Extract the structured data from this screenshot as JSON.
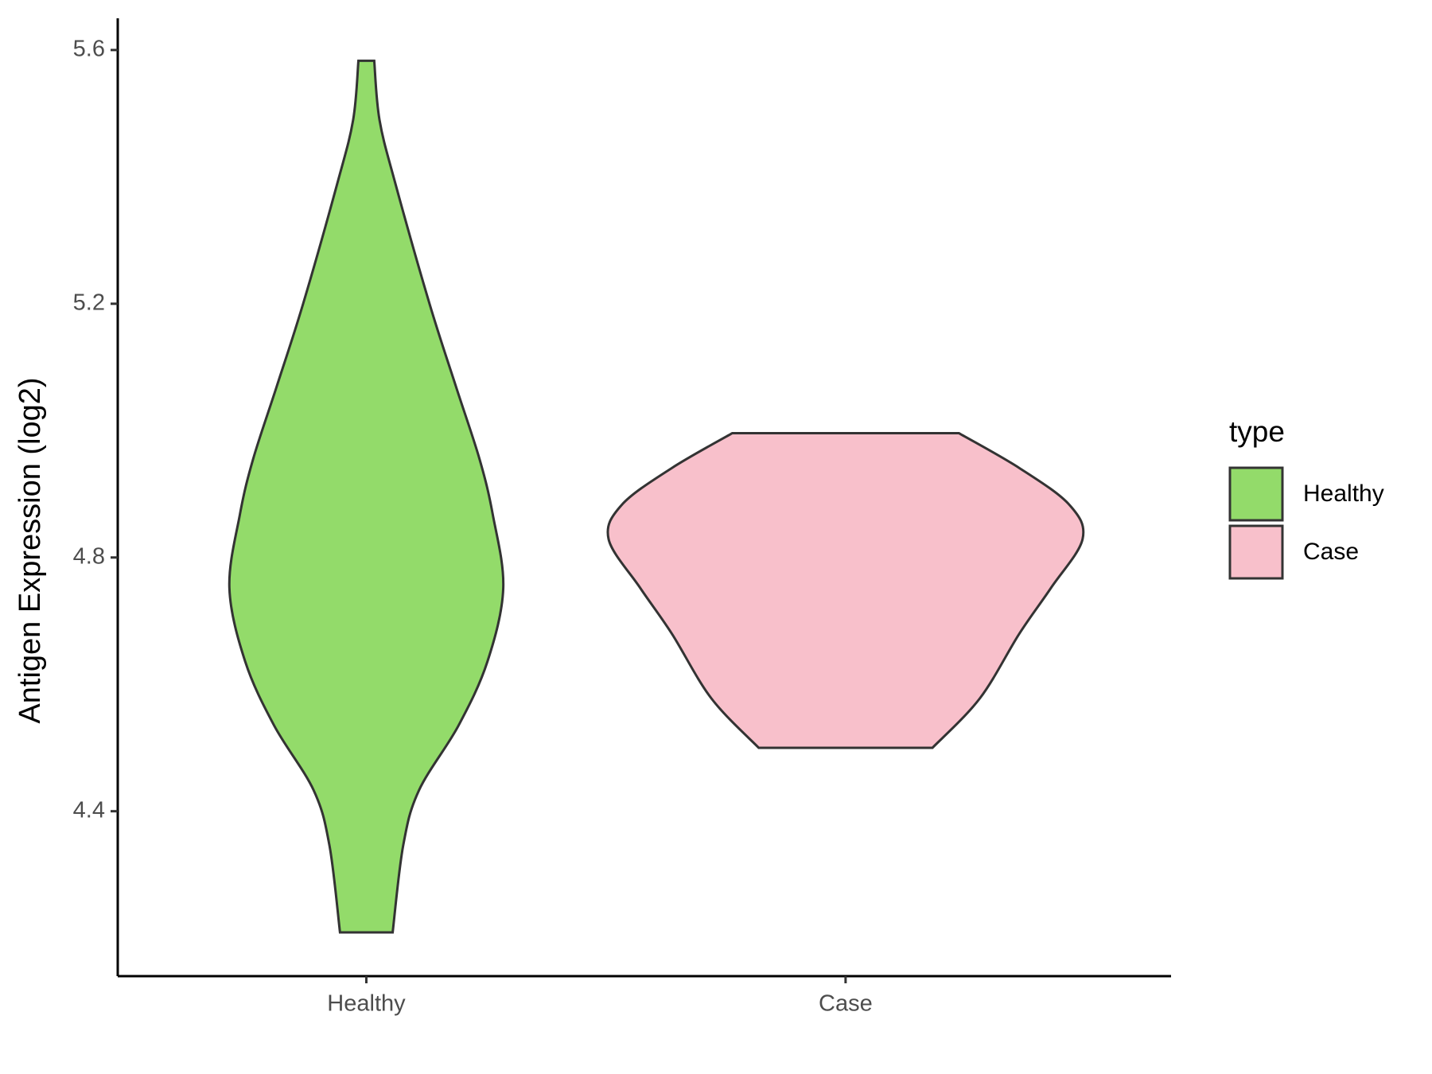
{
  "chart_data": {
    "type": "violin",
    "y_label": "Antigen Expression (log2)",
    "categories": [
      "Healthy",
      "Case"
    ],
    "series": [
      {
        "name": "Healthy",
        "color": "#93db6a",
        "y": [
          5.583,
          5.49,
          5.39,
          5.2,
          5.07,
          4.955,
          4.868,
          4.752,
          4.636,
          4.535,
          4.433,
          4.346,
          4.209
        ],
        "width": [
          0.03,
          0.05,
          0.11,
          0.24,
          0.34,
          0.43,
          0.48,
          0.52,
          0.46,
          0.35,
          0.2,
          0.14,
          0.1
        ]
      },
      {
        "name": "Case",
        "color": "#f8c0cb",
        "y": [
          4.996,
          4.941,
          4.883,
          4.829,
          4.752,
          4.68,
          4.578,
          4.5
        ],
        "width": [
          0.43,
          0.66,
          0.85,
          0.9,
          0.78,
          0.66,
          0.51,
          0.33
        ]
      }
    ],
    "ylim": [
      4.14,
      5.65
    ],
    "yticks": [
      4.4,
      4.8,
      5.2,
      5.6
    ],
    "legend_title": "type",
    "legend": "right"
  }
}
